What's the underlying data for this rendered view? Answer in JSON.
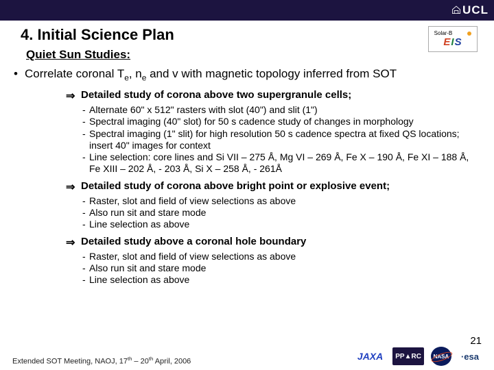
{
  "header": {
    "logo": "UCL"
  },
  "title": "4. Initial Science Plan",
  "subtitle": "Quiet Sun Studies:",
  "eis": {
    "top": "Solar-B"
  },
  "mainBullet": "Correlate coronal T<sub>e</sub>, n<sub>e</sub> and v with magnetic topology inferred from SOT",
  "sections": [
    {
      "heading": "Detailed study of corona above two supergranule cells;",
      "items": [
        "Alternate 60\" x 512\" rasters with slot (40\") and slit (1\")",
        "Spectral imaging (40\" slot) for 50 s cadence study of changes in morphology",
        "Spectral imaging (1\" slit) for high resolution 50 s cadence spectra at fixed QS locations; insert 40\" images for context",
        "Line selection: core lines and Si VII – 275 Å, Mg VI – 269 Å, Fe X – 190 Å, Fe XI – 188 Å, Fe XIII – 202 Å, - 203 Å, Si X – 258 Å, - 261Å"
      ]
    },
    {
      "heading": "Detailed study of corona above bright point or explosive event;",
      "items": [
        "Raster, slot  and field of view selections as above",
        "Also run sit and stare mode",
        "Line selection as above"
      ]
    },
    {
      "heading": "Detailed study above a coronal hole boundary",
      "items": [
        "Raster, slot  and field of view selections as above",
        "Also run sit and stare mode",
        "Line selection as above"
      ]
    }
  ],
  "footer": "Extended SOT Meeting, NAOJ, 17<sup>th</sup> – 20<sup>th</sup> April, 2006",
  "pageNum": "21",
  "logos": {
    "jaxa": "JAXA",
    "pparc": "PP▲RC",
    "nasa": "NASA",
    "esa": "esa"
  }
}
